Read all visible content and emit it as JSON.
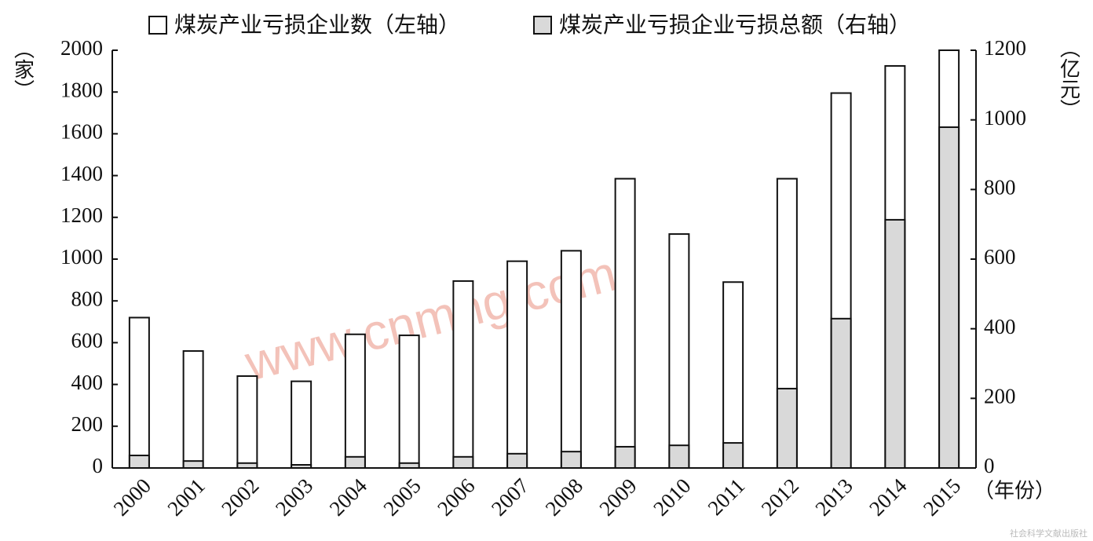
{
  "chart_data": {
    "type": "bar",
    "categories": [
      "2000",
      "2001",
      "2002",
      "2003",
      "2004",
      "2005",
      "2006",
      "2007",
      "2008",
      "2009",
      "2010",
      "2011",
      "2012",
      "2013",
      "2014",
      "2015"
    ],
    "series": [
      {
        "name": "煤炭产业亏损企业数（左轴）",
        "color": "#ffffff",
        "values": [
          720,
          560,
          440,
          415,
          640,
          635,
          895,
          990,
          1040,
          1385,
          1120,
          890,
          1385,
          1795,
          1925,
          2000
        ]
      },
      {
        "name": "煤炭产业亏损企业亏损总额（右轴）",
        "color": "#d9d9d9",
        "axis": "y2",
        "values": [
          36,
          20,
          14,
          9,
          32,
          14,
          32,
          41,
          47,
          61,
          65,
          72,
          228,
          429,
          713,
          979
        ]
      }
    ],
    "ylabel": "（家）",
    "y2label": "（亿元）",
    "xlabel": "（年份）",
    "ylim": [
      0,
      2000
    ],
    "yticks": [
      0,
      200,
      400,
      600,
      800,
      1000,
      1200,
      1400,
      1600,
      1800,
      2000
    ],
    "y2lim": [
      0,
      1200
    ],
    "y2ticks": [
      0,
      200,
      400,
      600,
      800,
      1000,
      1200
    ],
    "watermark": "www.cnmhg.com",
    "source": "社会科学文献出版社"
  }
}
